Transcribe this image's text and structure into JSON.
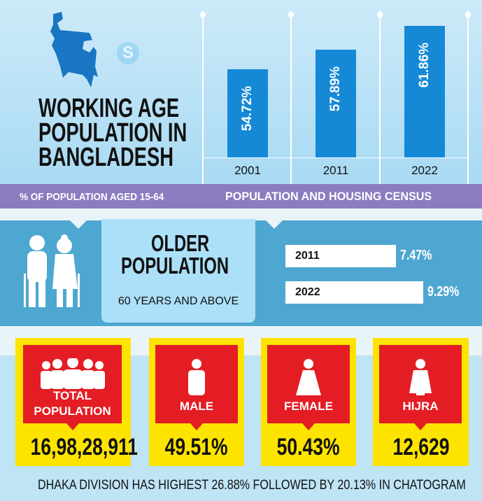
{
  "header": {
    "title_lines": [
      "WORKING AGE",
      "POPULATION IN",
      "BANGLADESH"
    ],
    "subtitle": "% OF POPULATION AGED 15-64",
    "source_label": "POPULATION AND HOUSING CENSUS",
    "logo_letter": "S"
  },
  "chart_data": {
    "type": "bar",
    "categories": [
      "2001",
      "2011",
      "2022"
    ],
    "values": [
      54.72,
      57.89,
      61.86
    ],
    "data_labels": [
      "54.72%",
      "57.89%",
      "61.86%"
    ],
    "xlabel": "POPULATION AND HOUSING CENSUS",
    "ylabel": "% OF POPULATION AGED 15-64",
    "grid": false,
    "bar_color": "#1589d6"
  },
  "older": {
    "title_lines": [
      "OLDER",
      "POPULATION"
    ],
    "subtitle": "60 YEARS AND ABOVE",
    "rows": [
      {
        "year": "2011",
        "value": 7.47,
        "label": "7.47%"
      },
      {
        "year": "2022",
        "value": 9.29,
        "label": "9.29%"
      }
    ]
  },
  "cards": [
    {
      "label_lines": [
        "TOTAL",
        "POPULATION"
      ],
      "value": "16,98,28,911",
      "icon": "group-icon"
    },
    {
      "label_lines": [
        "MALE"
      ],
      "value": "49.51%",
      "icon": "male-icon"
    },
    {
      "label_lines": [
        "FEMALE"
      ],
      "value": "50.43%",
      "icon": "female-icon"
    },
    {
      "label_lines": [
        "HIJRA"
      ],
      "value": "12,629",
      "icon": "hijra-icon"
    }
  ],
  "footer": "DHAKA DIVISION HAS HIGHEST 26.88% FOLLOWED BY 20.13% IN CHATOGRAM",
  "colors": {
    "bar": "#1589d6",
    "band": "#8b7cc0",
    "older_bg": "#4ea7d0",
    "card": "#fde400",
    "card_inner": "#e41d25"
  }
}
